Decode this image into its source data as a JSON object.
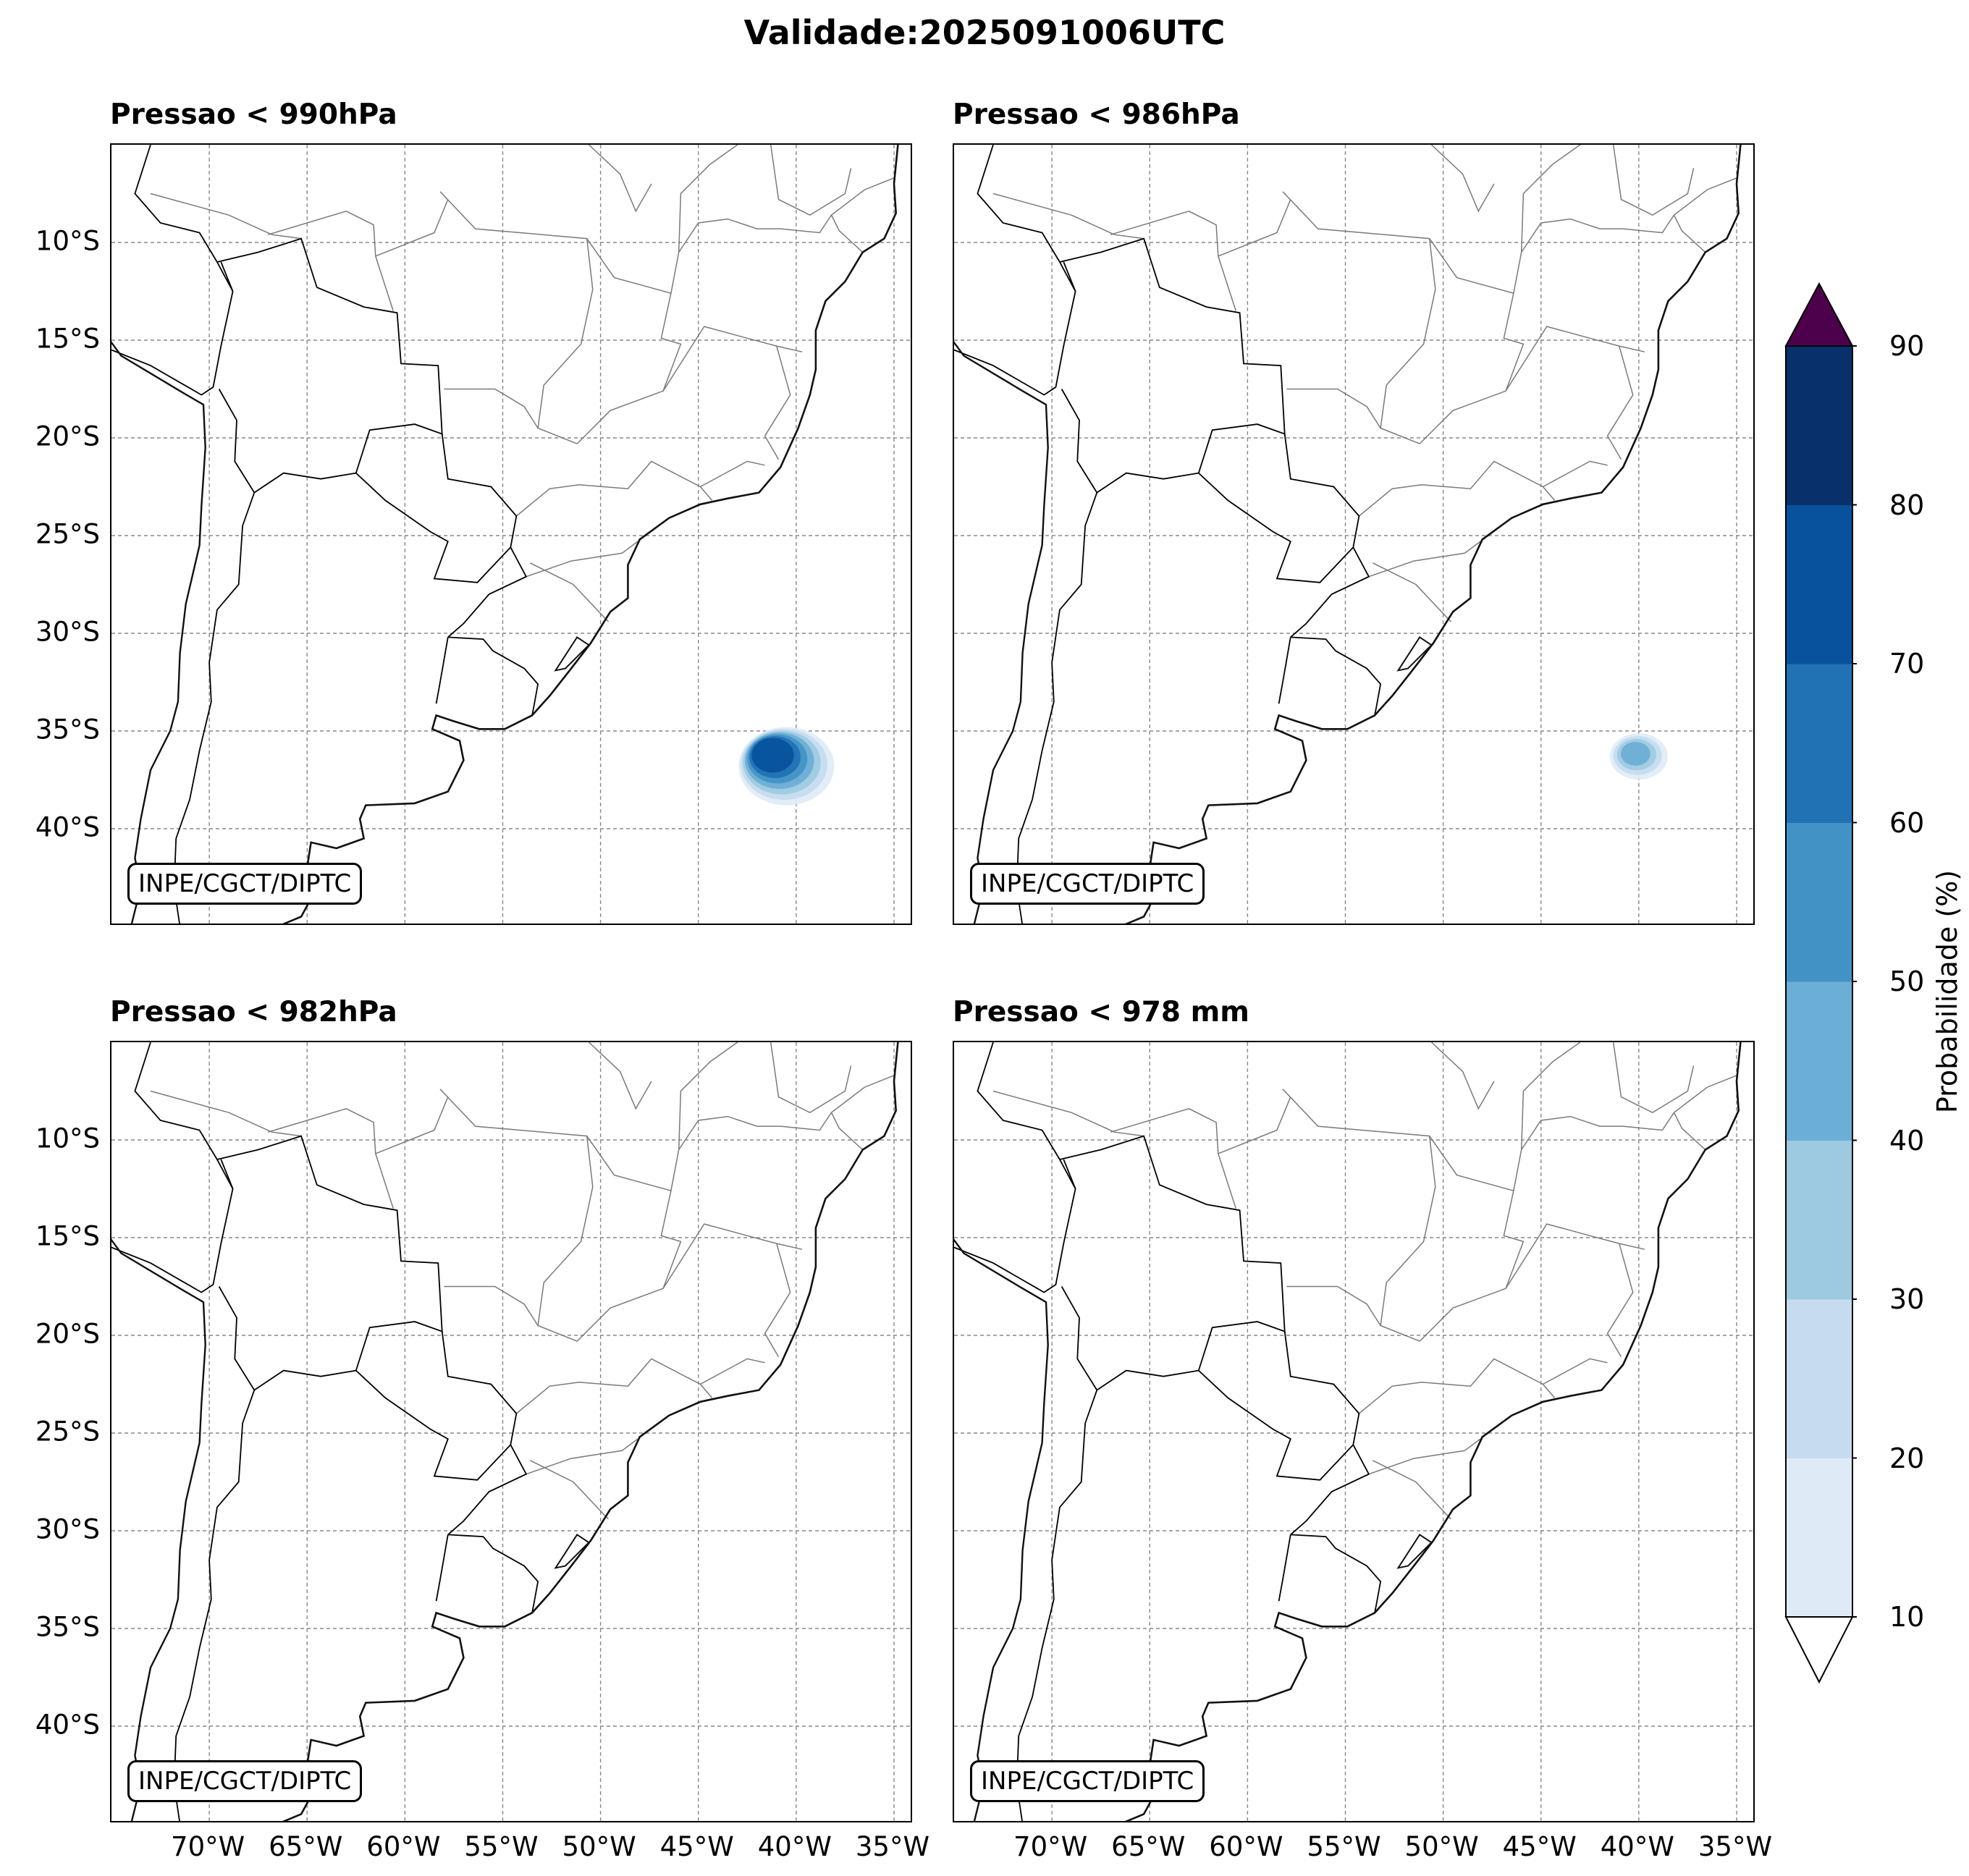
{
  "figure_title": "Validade:2025091006UTC",
  "panels": [
    {
      "title": "Pressao < 990hPa",
      "credit": "INPE/CGCT/DIPTC"
    },
    {
      "title": "Pressao < 986hPa",
      "credit": "INPE/CGCT/DIPTC"
    },
    {
      "title": "Pressao < 982hPa",
      "credit": "INPE/CGCT/DIPTC"
    },
    {
      "title": "Pressao < 978 mm",
      "credit": "INPE/CGCT/DIPTC"
    }
  ],
  "axes": {
    "lat_labels": [
      "10°S",
      "15°S",
      "20°S",
      "25°S",
      "30°S",
      "35°S",
      "40°S"
    ],
    "lon_labels": [
      "70°W",
      "65°W",
      "60°W",
      "55°W",
      "50°W",
      "45°W",
      "40°W",
      "35°W"
    ]
  },
  "colorbar": {
    "label": "Probabilidade (%)",
    "ticks": [
      "10",
      "20",
      "30",
      "40",
      "50",
      "60",
      "70",
      "80",
      "90"
    ],
    "colors": [
      "#deebf7",
      "#c6dbef",
      "#9ecae1",
      "#6baed6",
      "#4292c6",
      "#2171b5",
      "#08519c",
      "#08306b"
    ],
    "over_color": "#4d004b",
    "under_color": "#ffffff"
  },
  "map_data": {
    "extent": {
      "lon_min": -75,
      "lon_max": -34,
      "lat_min": -45,
      "lat_max": -5
    },
    "probability_blobs": [
      {
        "panel": 0,
        "center_lon": -40.5,
        "center_lat": -36.8,
        "max_prob": 70,
        "levels": [
          10,
          20,
          30,
          40,
          50,
          60,
          70
        ]
      },
      {
        "panel": 1,
        "center_lon": -40.0,
        "center_lat": -36.3,
        "max_prob": 40,
        "levels": [
          10,
          20,
          30,
          40
        ]
      }
    ]
  }
}
